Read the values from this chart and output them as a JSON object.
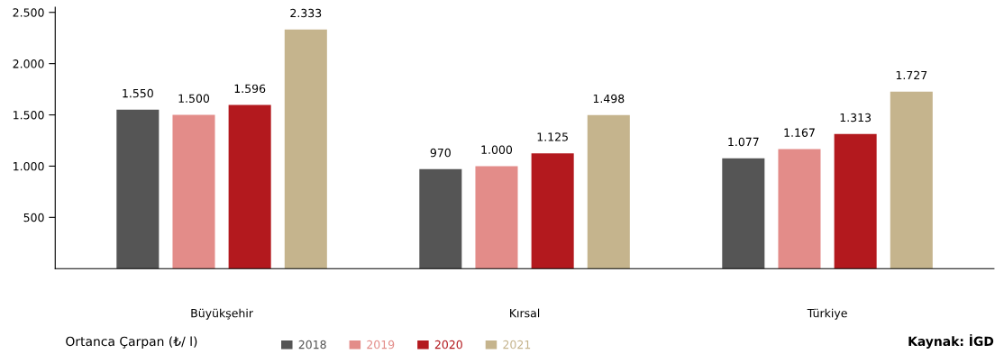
{
  "chart_data": {
    "type": "bar",
    "categories": [
      "Büyükşehir",
      "Kırsal",
      "Türkiye"
    ],
    "series": [
      {
        "name": "2018",
        "color": "#555555",
        "values": [
          1550,
          970,
          1077
        ],
        "value_labels": [
          "1.550",
          "970",
          "1.077"
        ]
      },
      {
        "name": "2019",
        "color": "#e38c89",
        "values": [
          1500,
          1000,
          1167
        ],
        "value_labels": [
          "1.500",
          "1.000",
          "1.167"
        ]
      },
      {
        "name": "2020",
        "color": "#b3191e",
        "values": [
          1596,
          1125,
          1313
        ],
        "value_labels": [
          "1.596",
          "1.125",
          "1.313"
        ]
      },
      {
        "name": "2021",
        "color": "#c5b48d",
        "values": [
          2333,
          1498,
          1727
        ],
        "value_labels": [
          "2.333",
          "1.498",
          "1.727"
        ]
      }
    ],
    "ylim": [
      0,
      2550
    ],
    "yticks": [
      {
        "value": 500,
        "label": "500"
      },
      {
        "value": 1000,
        "label": "1.000"
      },
      {
        "value": 1500,
        "label": "1.500"
      },
      {
        "value": 2000,
        "label": "2.000"
      },
      {
        "value": 2500,
        "label": "2.500"
      }
    ],
    "legend": "bottom",
    "legend_title": "Ortanca Çarpan (₺/ l)",
    "grid": false,
    "annotations": [
      "Kaynak: İGD"
    ]
  }
}
